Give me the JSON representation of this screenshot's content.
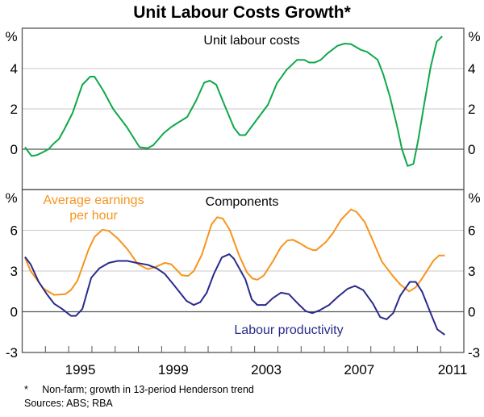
{
  "title": "Unit Labour Costs Growth*",
  "footnote": "*     Non-farm; growth in 13-period Henderson trend",
  "sources": "Sources: ABS; RBA",
  "colors": {
    "unit_labour_costs": "#10a84a",
    "earnings": "#f7941d",
    "productivity": "#2a2a8c",
    "grid": "#c8c8c8",
    "axis": "#555555"
  },
  "chart_data": [
    {
      "type": "line",
      "title": "Unit labour costs",
      "ylabel": "%",
      "ylim": [
        -2,
        6
      ],
      "yticks": [
        0,
        2,
        4
      ],
      "xlim": [
        1993,
        2012
      ],
      "grid": true,
      "series": [
        {
          "name": "Unit labour costs",
          "color": "#10a84a",
          "x": [
            1993.12,
            1993.4,
            1993.61,
            1993.89,
            1994.13,
            1994.37,
            1994.58,
            1994.82,
            1995.17,
            1995.59,
            1995.93,
            1996.11,
            1996.49,
            1996.91,
            1997.5,
            1998.05,
            1998.4,
            1998.64,
            1999.09,
            1999.41,
            1999.68,
            2000.1,
            2000.48,
            2000.83,
            2001.07,
            2001.35,
            2001.7,
            2002.11,
            2002.36,
            2002.6,
            2003.05,
            2003.57,
            2003.96,
            2004.37,
            2004.82,
            2005.14,
            2005.35,
            2005.59,
            2005.84,
            2006.11,
            2006.56,
            2006.87,
            2007.15,
            2007.57,
            2007.84,
            2008.29,
            2008.53,
            2008.82,
            2009.13,
            2009.34,
            2009.58,
            2009.83,
            2010.04,
            2010.29,
            2010.57,
            2010.83,
            2011.07
          ],
          "y": [
            0.1,
            -0.33,
            -0.3,
            -0.15,
            0,
            0.3,
            0.5,
            1.0,
            1.8,
            3.2,
            3.6,
            3.6,
            2.9,
            2.0,
            1.1,
            0.1,
            0.05,
            0.2,
            0.8,
            1.1,
            1.3,
            1.6,
            2.4,
            3.3,
            3.4,
            3.2,
            2.2,
            1.07,
            0.7,
            0.7,
            1.4,
            2.2,
            3.27,
            3.93,
            4.43,
            4.43,
            4.3,
            4.3,
            4.43,
            4.73,
            5.13,
            5.24,
            5.21,
            4.93,
            4.83,
            4.44,
            3.73,
            2.6,
            1.13,
            0,
            -0.83,
            -0.73,
            0.47,
            2.2,
            4.07,
            5.33,
            5.6
          ]
        }
      ]
    },
    {
      "type": "line",
      "title": "Components",
      "ylabel": "%",
      "ylim": [
        -3,
        9
      ],
      "yticks": [
        -3,
        0,
        3,
        6
      ],
      "xlim": [
        1993,
        2012
      ],
      "xticklabels": [
        "1995",
        "1999",
        "2003",
        "2007",
        "2011"
      ],
      "grid": true,
      "series": [
        {
          "name": "Average earnings per hour",
          "label_lines": [
            "Average earnings",
            "per hour"
          ],
          "color": "#f7941d",
          "x": [
            1993.12,
            1993.36,
            1993.92,
            1994.37,
            1994.86,
            1995.1,
            1995.38,
            1995.86,
            1996.11,
            1996.45,
            1996.73,
            1997.11,
            1997.53,
            1997.98,
            1998.4,
            1998.71,
            1999.13,
            1999.41,
            1999.86,
            2000.14,
            2000.38,
            2000.73,
            2001.15,
            2001.39,
            2001.63,
            2001.94,
            2002.32,
            2002.67,
            2002.91,
            2003.12,
            2003.39,
            2003.78,
            2004.13,
            2004.4,
            2004.65,
            2004.93,
            2005.27,
            2005.51,
            2005.65,
            2006.07,
            2006.37,
            2006.73,
            2007.15,
            2007.39,
            2007.74,
            2008.12,
            2008.47,
            2008.96,
            2009.27,
            2009.65,
            2009.93,
            2010.2,
            2010.69,
            2010.93,
            2011.18
          ],
          "y": [
            4.0,
            3.0,
            1.7,
            1.24,
            1.3,
            1.6,
            2.3,
            4.6,
            5.5,
            6.04,
            5.96,
            5.4,
            4.6,
            3.5,
            3.14,
            3.28,
            3.6,
            3.5,
            2.7,
            2.64,
            3.0,
            4.2,
            6.44,
            6.96,
            6.86,
            6.0,
            4.2,
            2.9,
            2.44,
            2.36,
            2.66,
            3.7,
            4.76,
            5.24,
            5.3,
            5.06,
            4.7,
            4.54,
            4.54,
            5.14,
            5.8,
            6.8,
            7.54,
            7.34,
            6.6,
            5.1,
            3.7,
            2.6,
            2.0,
            1.5,
            1.8,
            2.44,
            3.76,
            4.14,
            4.14
          ]
        },
        {
          "name": "Labour productivity",
          "color": "#2a2a8c",
          "x": [
            1993.12,
            1993.36,
            1993.71,
            1994.06,
            1994.37,
            1994.72,
            1995.1,
            1995.31,
            1995.59,
            1995.97,
            1996.32,
            1996.73,
            1997.11,
            1997.53,
            1997.91,
            1998.4,
            1998.78,
            1999.13,
            1999.51,
            2000.07,
            2000.38,
            2000.66,
            2000.94,
            2001.25,
            2001.59,
            2001.91,
            2002.11,
            2002.6,
            2002.88,
            2003.12,
            2003.47,
            2003.78,
            2004.13,
            2004.47,
            2004.86,
            2005.2,
            2005.48,
            2005.79,
            2006.2,
            2006.58,
            2007.01,
            2007.32,
            2007.67,
            2008.09,
            2008.4,
            2008.68,
            2008.96,
            2009.27,
            2009.68,
            2009.93,
            2010.2,
            2010.62,
            2010.86,
            2011.18
          ],
          "y": [
            4.04,
            3.5,
            2.2,
            1.3,
            0.6,
            0.2,
            -0.3,
            -0.3,
            0.2,
            2.5,
            3.2,
            3.6,
            3.74,
            3.74,
            3.6,
            3.46,
            3.2,
            2.8,
            2.0,
            0.8,
            0.5,
            0.7,
            1.4,
            2.8,
            4.0,
            4.24,
            3.9,
            2.4,
            0.9,
            0.5,
            0.5,
            1.0,
            1.4,
            1.3,
            0.6,
            0.04,
            -0.1,
            0.1,
            0.5,
            1.1,
            1.7,
            1.9,
            1.6,
            0.6,
            -0.4,
            -0.56,
            -0.1,
            1.2,
            2.2,
            2.2,
            1.5,
            -0.3,
            -1.3,
            -1.7
          ]
        }
      ]
    }
  ]
}
